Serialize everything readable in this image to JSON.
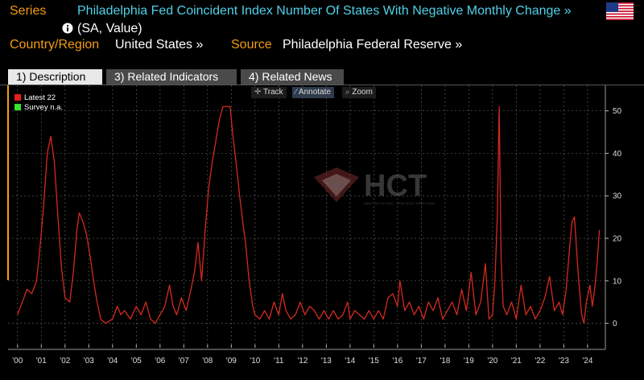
{
  "header": {
    "series_label": "Series",
    "series_title": "Philadelphia Fed Coincident Index Number Of States With Negative Monthly Change »",
    "info_icon": "info-icon",
    "series_sub": "(SA, Value)",
    "country_label": "Country/Region",
    "country_value": "United States »",
    "source_label": "Source",
    "source_value": "Philadelphia Federal Reserve »"
  },
  "tabs": [
    {
      "label": "1) Description",
      "active": true
    },
    {
      "label": "3) Related Indicators",
      "active": false
    },
    {
      "label": "4) Related News",
      "active": false
    }
  ],
  "toolbar": {
    "track": "Track",
    "annotate": "Annotate",
    "zoom": "Zoom"
  },
  "legend": {
    "latest": "Latest 22",
    "survey": "Survey n.a."
  },
  "watermark": {
    "text": "HCT",
    "subtitle": "NÂNG TẦM TRI THỨC · VỮNG BƯỚC THÀNH CÔNG"
  },
  "colors": {
    "series": "#d42a1f",
    "latest_swatch": "#e32019",
    "survey_swatch": "#35e32a",
    "link": "#4fd1e8",
    "label": "#f39c12"
  },
  "chart_data": {
    "type": "line",
    "title": "Philadelphia Fed Coincident Index Number Of States With Negative Monthly Change",
    "ylim": [
      -5,
      56
    ],
    "yticks": [
      0,
      10,
      20,
      30,
      40,
      50
    ],
    "xlim": [
      1999.6,
      2024.75
    ],
    "xticks": [
      "'00",
      "'01",
      "'02",
      "'03",
      "'04",
      "'05",
      "'06",
      "'07",
      "'08",
      "'09",
      "'10",
      "'11",
      "'12",
      "'13",
      "'14",
      "'15",
      "'16",
      "'17",
      "'18",
      "'19",
      "'20",
      "'21",
      "'22",
      "'23",
      "'24"
    ],
    "latest": 22,
    "series": [
      {
        "name": "Negative Monthly Change",
        "points": [
          [
            2000.0,
            2
          ],
          [
            2000.2,
            5
          ],
          [
            2000.4,
            8
          ],
          [
            2000.6,
            7
          ],
          [
            2000.8,
            10
          ],
          [
            2000.95,
            18
          ],
          [
            2001.1,
            28
          ],
          [
            2001.25,
            40
          ],
          [
            2001.4,
            44
          ],
          [
            2001.55,
            38
          ],
          [
            2001.7,
            25
          ],
          [
            2001.85,
            13
          ],
          [
            2002.0,
            6
          ],
          [
            2002.2,
            5
          ],
          [
            2002.35,
            12
          ],
          [
            2002.5,
            22
          ],
          [
            2002.6,
            26
          ],
          [
            2002.75,
            24
          ],
          [
            2002.9,
            21
          ],
          [
            2003.05,
            16
          ],
          [
            2003.2,
            10
          ],
          [
            2003.35,
            5
          ],
          [
            2003.5,
            1
          ],
          [
            2003.7,
            0
          ],
          [
            2004.0,
            1
          ],
          [
            2004.2,
            4
          ],
          [
            2004.35,
            2
          ],
          [
            2004.5,
            3
          ],
          [
            2004.75,
            1
          ],
          [
            2005.0,
            4
          ],
          [
            2005.2,
            2
          ],
          [
            2005.4,
            5
          ],
          [
            2005.6,
            1
          ],
          [
            2005.8,
            0
          ],
          [
            2006.0,
            2
          ],
          [
            2006.2,
            4
          ],
          [
            2006.4,
            9
          ],
          [
            2006.55,
            4
          ],
          [
            2006.7,
            2
          ],
          [
            2006.9,
            6
          ],
          [
            2007.1,
            3
          ],
          [
            2007.3,
            8
          ],
          [
            2007.45,
            12
          ],
          [
            2007.6,
            19
          ],
          [
            2007.75,
            10
          ],
          [
            2007.9,
            22
          ],
          [
            2008.05,
            32
          ],
          [
            2008.2,
            38
          ],
          [
            2008.35,
            43
          ],
          [
            2008.5,
            48
          ],
          [
            2008.65,
            51
          ],
          [
            2008.8,
            51
          ],
          [
            2008.95,
            51
          ],
          [
            2009.05,
            45
          ],
          [
            2009.2,
            38
          ],
          [
            2009.35,
            30
          ],
          [
            2009.5,
            23
          ],
          [
            2009.6,
            19
          ],
          [
            2009.75,
            10
          ],
          [
            2009.9,
            4
          ],
          [
            2010.0,
            2
          ],
          [
            2010.2,
            1
          ],
          [
            2010.4,
            3
          ],
          [
            2010.6,
            1
          ],
          [
            2010.8,
            5
          ],
          [
            2011.0,
            2
          ],
          [
            2011.15,
            7
          ],
          [
            2011.3,
            3
          ],
          [
            2011.5,
            1
          ],
          [
            2011.7,
            2
          ],
          [
            2011.9,
            5
          ],
          [
            2012.1,
            2
          ],
          [
            2012.3,
            4
          ],
          [
            2012.5,
            3
          ],
          [
            2012.7,
            1
          ],
          [
            2012.9,
            3
          ],
          [
            2013.1,
            1
          ],
          [
            2013.3,
            3
          ],
          [
            2013.5,
            1
          ],
          [
            2013.7,
            2
          ],
          [
            2013.9,
            5
          ],
          [
            2014.0,
            1
          ],
          [
            2014.2,
            3
          ],
          [
            2014.4,
            2
          ],
          [
            2014.6,
            1
          ],
          [
            2014.8,
            3
          ],
          [
            2015.0,
            1
          ],
          [
            2015.2,
            3
          ],
          [
            2015.4,
            1
          ],
          [
            2015.6,
            6
          ],
          [
            2015.8,
            7
          ],
          [
            2016.0,
            4
          ],
          [
            2016.1,
            10
          ],
          [
            2016.3,
            3
          ],
          [
            2016.5,
            5
          ],
          [
            2016.7,
            2
          ],
          [
            2016.9,
            4
          ],
          [
            2017.1,
            1
          ],
          [
            2017.3,
            5
          ],
          [
            2017.5,
            3
          ],
          [
            2017.7,
            6
          ],
          [
            2017.9,
            1
          ],
          [
            2018.1,
            3
          ],
          [
            2018.3,
            5
          ],
          [
            2018.5,
            2
          ],
          [
            2018.7,
            8
          ],
          [
            2018.9,
            3
          ],
          [
            2019.1,
            12
          ],
          [
            2019.3,
            2
          ],
          [
            2019.5,
            5
          ],
          [
            2019.7,
            14
          ],
          [
            2019.85,
            1
          ],
          [
            2020.0,
            2
          ],
          [
            2020.1,
            10
          ],
          [
            2020.2,
            25
          ],
          [
            2020.28,
            51
          ],
          [
            2020.36,
            15
          ],
          [
            2020.45,
            4
          ],
          [
            2020.6,
            2
          ],
          [
            2020.8,
            5
          ],
          [
            2021.0,
            1
          ],
          [
            2021.2,
            9
          ],
          [
            2021.4,
            2
          ],
          [
            2021.6,
            4
          ],
          [
            2021.8,
            1
          ],
          [
            2022.0,
            3
          ],
          [
            2022.2,
            6
          ],
          [
            2022.4,
            11
          ],
          [
            2022.6,
            3
          ],
          [
            2022.8,
            5
          ],
          [
            2022.95,
            2
          ],
          [
            2023.1,
            8
          ],
          [
            2023.25,
            18
          ],
          [
            2023.35,
            24
          ],
          [
            2023.45,
            25
          ],
          [
            2023.6,
            12
          ],
          [
            2023.75,
            2
          ],
          [
            2023.85,
            0
          ],
          [
            2023.95,
            5
          ],
          [
            2024.1,
            9
          ],
          [
            2024.2,
            4
          ],
          [
            2024.3,
            8
          ],
          [
            2024.4,
            14
          ],
          [
            2024.5,
            22
          ]
        ]
      }
    ]
  }
}
